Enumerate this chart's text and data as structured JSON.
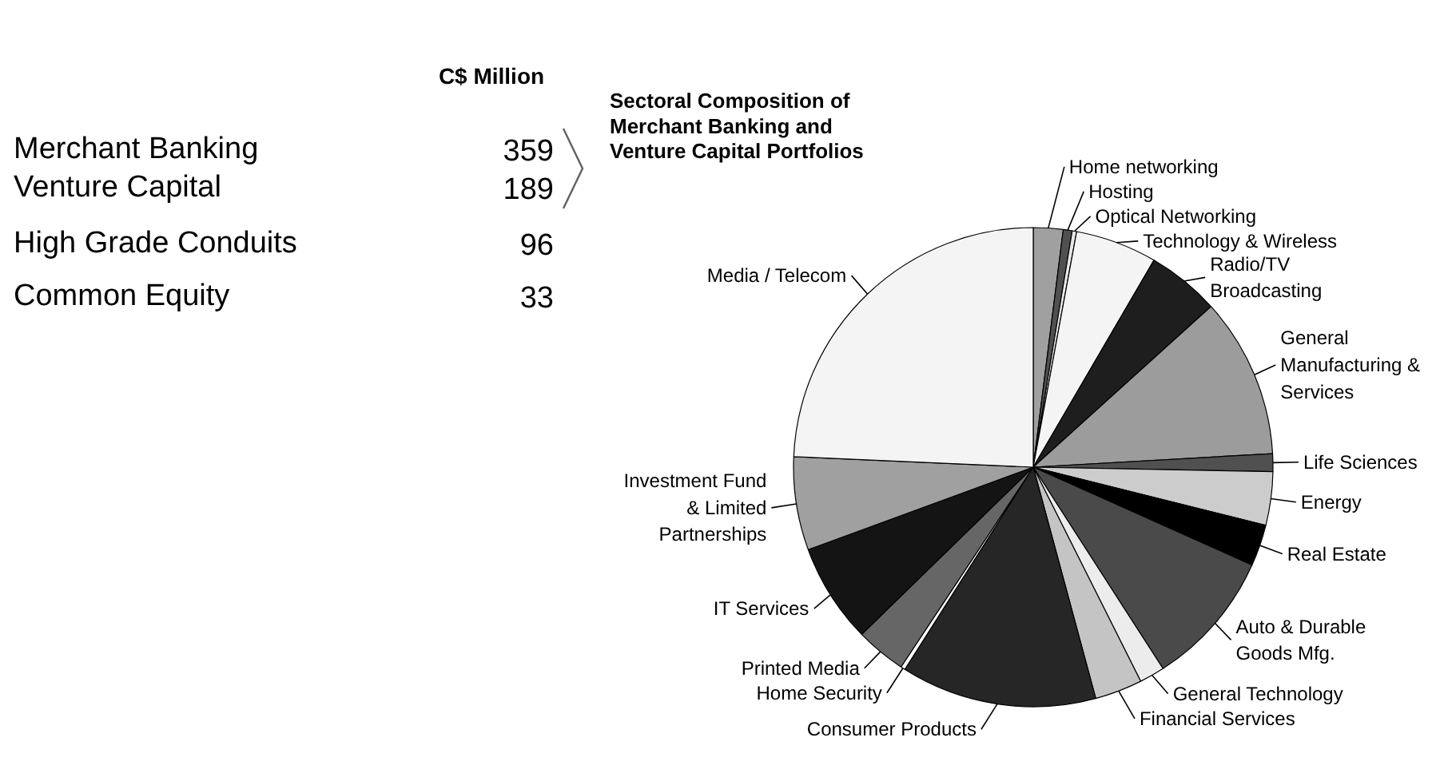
{
  "chart_data": [
    {
      "type": "other",
      "title": "C$ Million",
      "categories": [
        "Merchant Banking",
        "Venture Capital",
        "High Grade Conduits",
        "Common Equity"
      ],
      "value_labels": [
        "359",
        "189",
        "96",
        "33"
      ]
    },
    {
      "type": "pie",
      "title": "Sectoral Composition of Merchant Banking and Venture Capital Portfolios",
      "categories": [
        "Home networking",
        "Hosting",
        "Optical Networking",
        "Technology & Wireless",
        "Radio/TV Broadcasting",
        "General Manufacturing & Services",
        "Life Sciences",
        "Energy",
        "Real Estate",
        "Auto & Durable Goods Mfg.",
        "General Technology",
        "Financial Services",
        "Consumer Products",
        "Home Security",
        "Printed Media",
        "IT Services",
        "Investment Fund & Limited Partnerships",
        "Media / Telecom"
      ],
      "values": [
        2.0,
        0.6,
        0.3,
        5.5,
        4.9,
        10.8,
        1.2,
        3.6,
        2.8,
        9.2,
        1.7,
        3.2,
        13.2,
        0.3,
        3.4,
        6.7,
        6.3,
        24.3
      ],
      "colors": [
        "#a0a0a0",
        "#505050",
        "#e8e8e8",
        "#f4f4f4",
        "#1e1e1e",
        "#9c9c9c",
        "#505050",
        "#cccccc",
        "#000000",
        "#4a4a4a",
        "#ececec",
        "#c4c4c4",
        "#262626",
        "#ffffff",
        "#666666",
        "#141414",
        "#a0a0a0",
        "#f4f4f4"
      ]
    }
  ]
}
